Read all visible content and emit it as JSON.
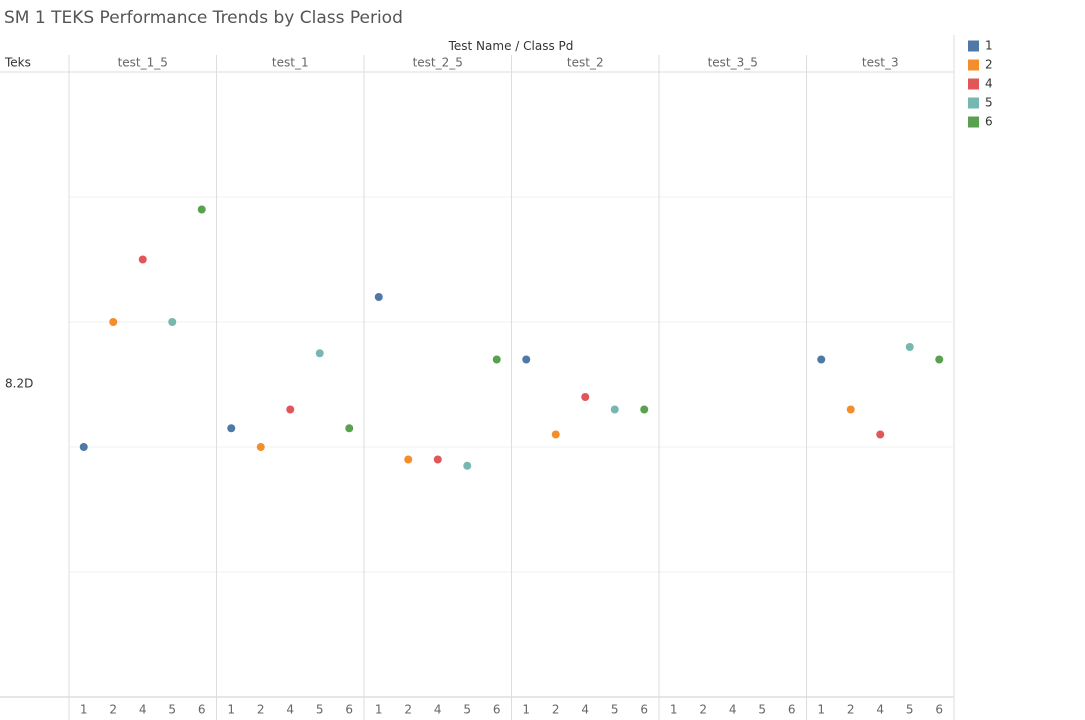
{
  "chart_data": {
    "type": "strip",
    "title": "SM 1 TEKS Performance Trends by Class Period",
    "column_header": "Test Name",
    "column_subheader": "Class Pd",
    "row_header": "Teks",
    "row_label": "8.2D",
    "categories": [
      "test_1_5",
      "test_1",
      "test_2_5",
      "test_2",
      "test_3_5",
      "test_3"
    ],
    "series": [
      {
        "name": "1",
        "color": "#4e79a7",
        "values": [
          40,
          43,
          64,
          54,
          null,
          54
        ]
      },
      {
        "name": "2",
        "color": "#f28e2b",
        "values": [
          60,
          40,
          38,
          42,
          null,
          46
        ]
      },
      {
        "name": "4",
        "color": "#e15759",
        "values": [
          70,
          46,
          38,
          48,
          null,
          42
        ]
      },
      {
        "name": "5",
        "color": "#76b7b2",
        "values": [
          60,
          55,
          37,
          46,
          null,
          56
        ]
      },
      {
        "name": "6",
        "color": "#59a14f",
        "values": [
          78,
          43,
          54,
          46,
          null,
          54
        ]
      }
    ],
    "ylim": [
      0,
      100
    ],
    "yticks": [
      20,
      40,
      60,
      80
    ],
    "grid": true
  }
}
